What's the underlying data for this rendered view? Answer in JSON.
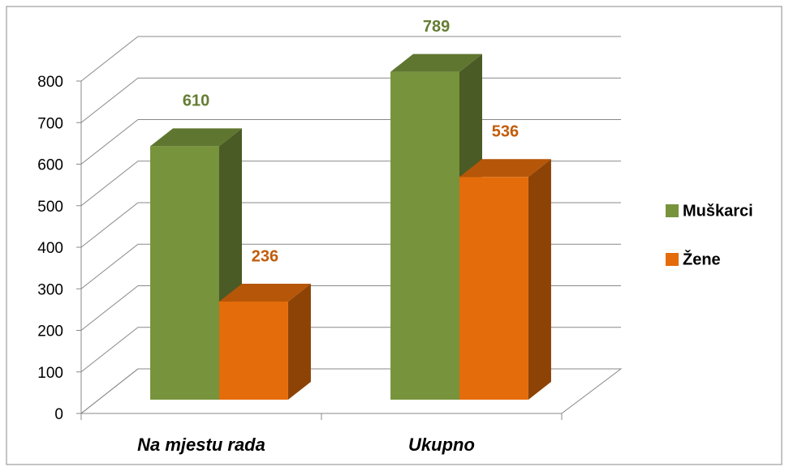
{
  "chart_data": {
    "type": "bar3d",
    "categories": [
      "Na mjestu rada",
      "Ukupno"
    ],
    "series": [
      {
        "name": "Muškarci",
        "color": "#77933c",
        "values": [
          610,
          789
        ]
      },
      {
        "name": "Žene",
        "color": "#e46c0a",
        "values": [
          236,
          536
        ]
      }
    ],
    "ylim": [
      0,
      800
    ],
    "yticks": [
      0,
      100,
      200,
      300,
      400,
      500,
      600,
      700,
      800
    ],
    "grid": true,
    "legend": "right"
  }
}
